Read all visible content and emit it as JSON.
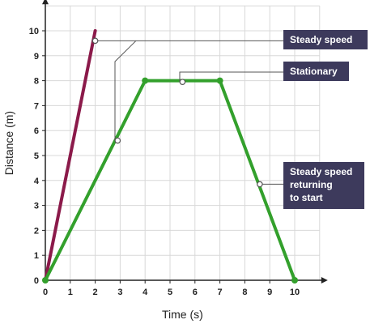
{
  "chart_data": {
    "type": "line",
    "xlabel": "Time (s)",
    "ylabel": "Distance (m)",
    "xlim": [
      0,
      11
    ],
    "ylim": [
      0,
      11
    ],
    "xticks": [
      0,
      1,
      2,
      3,
      4,
      5,
      6,
      7,
      8,
      9,
      10
    ],
    "yticks": [
      0,
      1,
      2,
      3,
      4,
      5,
      6,
      7,
      8,
      9,
      10
    ],
    "grid": true,
    "series": [
      {
        "color": "#8b1a4a",
        "x": [
          0,
          2
        ],
        "y": [
          0,
          10
        ]
      },
      {
        "color": "#33a02c",
        "x": [
          0,
          4,
          7,
          10
        ],
        "y": [
          0,
          8,
          8,
          0
        ]
      }
    ],
    "annotations": [
      {
        "lines": [
          "Steady speed"
        ],
        "targets": [
          [
            2,
            9.6
          ],
          [
            2.9,
            5.6
          ]
        ]
      },
      {
        "lines": [
          "Stationary"
        ],
        "targets": [
          [
            5.5,
            7.95
          ]
        ]
      },
      {
        "lines": [
          "Steady speed",
          "returning",
          "to start"
        ],
        "targets": [
          [
            8.6,
            3.85
          ]
        ]
      }
    ],
    "annotation_color": "#3d3a5c",
    "grid_color": "#d8d8d8",
    "axis_color": "#222222"
  }
}
